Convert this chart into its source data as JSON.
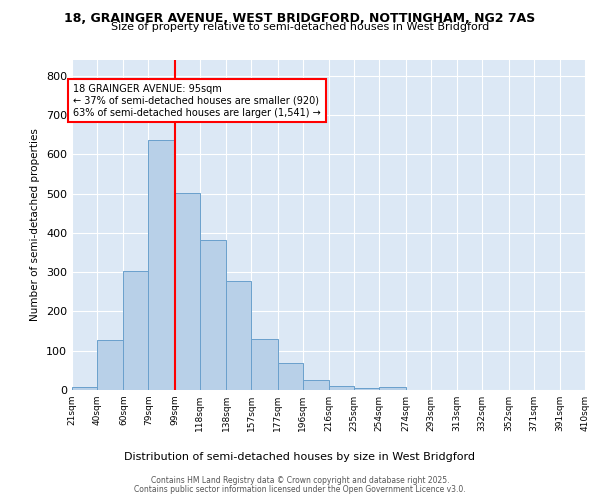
{
  "title1": "18, GRAINGER AVENUE, WEST BRIDGFORD, NOTTINGHAM, NG2 7AS",
  "title2": "Size of property relative to semi-detached houses in West Bridgford",
  "xlabel": "Distribution of semi-detached houses by size in West Bridgford",
  "ylabel": "Number of semi-detached properties",
  "footer1": "Contains HM Land Registry data © Crown copyright and database right 2025.",
  "footer2": "Contains public sector information licensed under the Open Government Licence v3.0.",
  "annotation_title": "18 GRAINGER AVENUE: 95sqm",
  "annotation_line1": "← 37% of semi-detached houses are smaller (920)",
  "annotation_line2": "63% of semi-detached houses are larger (1,541) →",
  "bar_color": "#b8d0e8",
  "bar_edge_color": "#6aa0cc",
  "bg_color": "#dce8f5",
  "grid_color": "#ffffff",
  "fig_bg_color": "#ffffff",
  "red_line_x": 99,
  "bin_edges": [
    21,
    40,
    60,
    79,
    99,
    118,
    138,
    157,
    177,
    196,
    216,
    235,
    254,
    274,
    293,
    313,
    332,
    352,
    371,
    391,
    410
  ],
  "bin_counts": [
    8,
    128,
    302,
    637,
    502,
    383,
    278,
    130,
    70,
    25,
    10,
    5,
    7,
    0,
    0,
    0,
    0,
    0,
    0,
    0
  ],
  "ylim": [
    0,
    840
  ],
  "yticks": [
    0,
    100,
    200,
    300,
    400,
    500,
    600,
    700,
    800
  ],
  "tick_labels": [
    "21sqm",
    "40sqm",
    "60sqm",
    "79sqm",
    "99sqm",
    "118sqm",
    "138sqm",
    "157sqm",
    "177sqm",
    "196sqm",
    "216sqm",
    "235sqm",
    "254sqm",
    "274sqm",
    "293sqm",
    "313sqm",
    "332sqm",
    "352sqm",
    "371sqm",
    "391sqm",
    "410sqm"
  ]
}
